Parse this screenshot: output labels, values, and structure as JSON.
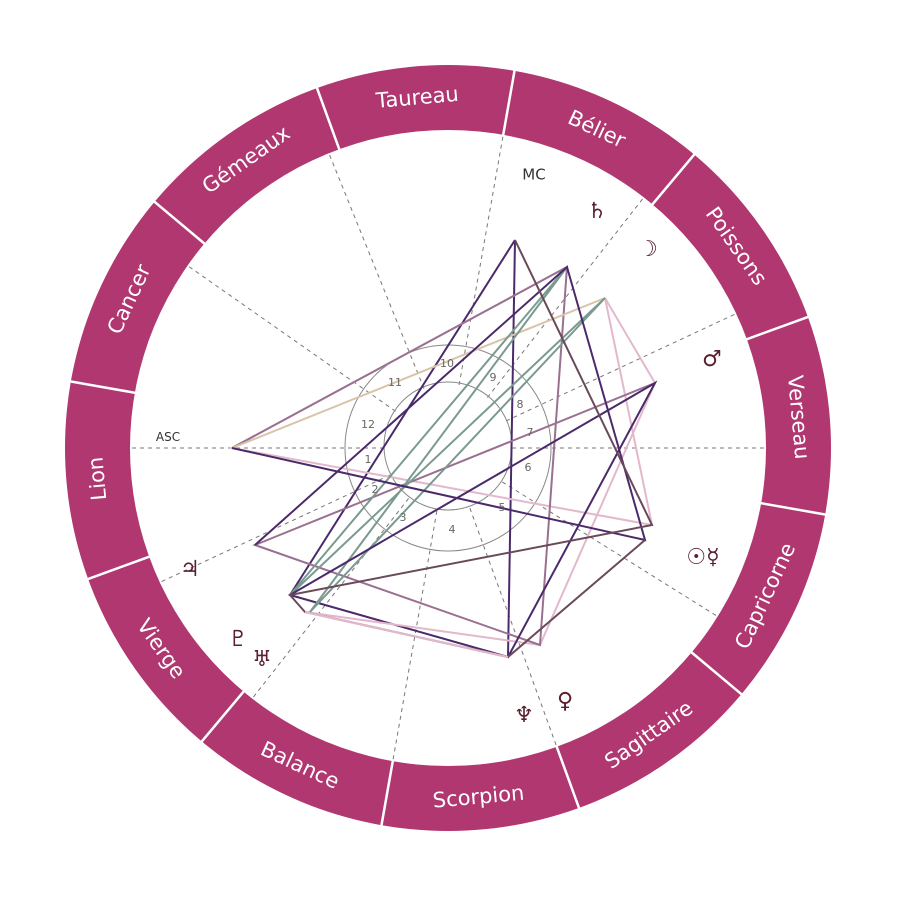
{
  "signs": [
    "Taureau",
    "Bélier",
    "Poissons",
    "Verseau",
    "Capricorne",
    "Sagittaire",
    "Scorpion",
    "Balance",
    "Vierge",
    "Lion",
    "Cancer",
    "Gémeaux"
  ],
  "angles": {
    "asc": "ASC",
    "mc": "MC"
  },
  "houses": [
    1,
    2,
    3,
    4,
    5,
    6,
    7,
    8,
    9,
    10,
    11,
    12
  ],
  "planets": [
    "♄",
    "☽",
    "♂",
    "☉☿",
    "♀",
    "♆",
    "♅",
    "♇",
    "♃"
  ]
}
